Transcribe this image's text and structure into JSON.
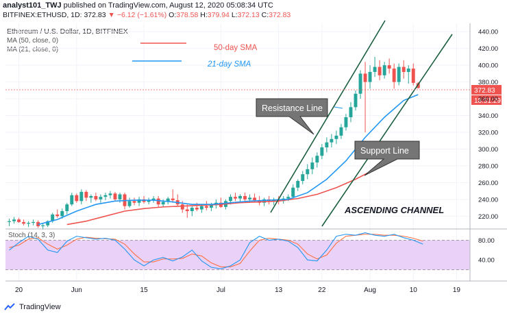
{
  "header": {
    "author": "analyst101_TWJ",
    "published_text": "published on TradingView.com, August 12, 2020 05:08:34 UTC",
    "symbol": "BITFINEX:ETHUSD, 1D",
    "price": "372.83",
    "change": "−6.12 (−1.61%)",
    "o": "378.58",
    "h": "379.94",
    "l": "372.13",
    "c": "372.83",
    "o_label": "O:",
    "h_label": "H:",
    "l_label": "L:",
    "c_label": "C:"
  },
  "legend": {
    "title": "Ethereum / U.S. Dollar, 1D, BITFINEX",
    "ma50": "MA (50, close, 0)",
    "ma21": "MA (21, close, 0)"
  },
  "annotations": {
    "sma50": "50-day SMA",
    "sma21": "21-day SMA",
    "resistance": "Resistance Line",
    "support": "Support Line",
    "channel": "ASCENDING CHANNEL",
    "price_tag": "372.83",
    "time_tag": "18:51:29"
  },
  "stoch_label": "Stoch (14, 3, 3)",
  "footer": {
    "brand": "TradingView"
  },
  "colors": {
    "up": "#26a69a",
    "down": "#ef5350",
    "sma50": "#ef5350",
    "sma21": "#2196f3",
    "channel": "#1b5e3f",
    "stoch_k": "#2196f3",
    "stoch_d": "#ff7043",
    "stoch_fill": "#e9d1f7"
  },
  "chart_data": {
    "type": "candlestick",
    "y_ticks": [
      220,
      240,
      260,
      280,
      300,
      320,
      340,
      360,
      380,
      400,
      420,
      440
    ],
    "ylim": [
      208,
      450
    ],
    "x_labels": [
      {
        "label": "20",
        "index": 2
      },
      {
        "label": "Jun",
        "index": 14
      },
      {
        "label": "15",
        "index": 28
      },
      {
        "label": "Jul",
        "index": 44
      },
      {
        "label": "13",
        "index": 56
      },
      {
        "label": "22",
        "index": 65
      },
      {
        "label": "Aug",
        "index": 75
      },
      {
        "label": "10",
        "index": 84
      },
      {
        "label": "19",
        "index": 93
      }
    ],
    "ohlc": [
      [
        213,
        217,
        208,
        214
      ],
      [
        214,
        219,
        211,
        216
      ],
      [
        216,
        218,
        212,
        213
      ],
      [
        213,
        216,
        209,
        211
      ],
      [
        211,
        214,
        207,
        212
      ],
      [
        212,
        216,
        209,
        213
      ],
      [
        213,
        215,
        206,
        208
      ],
      [
        208,
        212,
        204,
        209
      ],
      [
        209,
        215,
        207,
        214
      ],
      [
        214,
        224,
        212,
        222
      ],
      [
        222,
        228,
        218,
        220
      ],
      [
        220,
        229,
        217,
        226
      ],
      [
        226,
        236,
        222,
        234
      ],
      [
        234,
        248,
        232,
        245
      ],
      [
        245,
        247,
        236,
        238
      ],
      [
        238,
        252,
        234,
        249
      ],
      [
        249,
        251,
        238,
        242
      ],
      [
        242,
        246,
        236,
        244
      ],
      [
        244,
        248,
        238,
        240
      ],
      [
        240,
        246,
        236,
        243
      ],
      [
        243,
        248,
        239,
        245
      ],
      [
        245,
        250,
        241,
        247
      ],
      [
        247,
        249,
        238,
        240
      ],
      [
        240,
        248,
        236,
        246
      ],
      [
        246,
        248,
        228,
        232
      ],
      [
        232,
        242,
        230,
        238
      ],
      [
        238,
        242,
        233,
        236
      ],
      [
        236,
        243,
        232,
        240
      ],
      [
        240,
        244,
        235,
        237
      ],
      [
        237,
        242,
        234,
        239
      ],
      [
        239,
        244,
        236,
        241
      ],
      [
        241,
        244,
        230,
        234
      ],
      [
        234,
        240,
        231,
        237
      ],
      [
        237,
        243,
        234,
        241
      ],
      [
        241,
        252,
        236,
        239
      ],
      [
        239,
        246,
        232,
        234
      ],
      [
        234,
        238,
        224,
        228
      ],
      [
        228,
        234,
        218,
        226
      ],
      [
        226,
        232,
        220,
        230
      ],
      [
        230,
        236,
        226,
        228
      ],
      [
        228,
        234,
        224,
        232
      ],
      [
        232,
        238,
        227,
        230
      ],
      [
        230,
        236,
        226,
        233
      ],
      [
        233,
        240,
        229,
        236
      ],
      [
        236,
        242,
        230,
        231
      ],
      [
        231,
        240,
        228,
        238
      ],
      [
        238,
        246,
        234,
        243
      ],
      [
        243,
        248,
        238,
        241
      ],
      [
        241,
        246,
        236,
        244
      ],
      [
        244,
        248,
        238,
        240
      ],
      [
        240,
        246,
        236,
        242
      ],
      [
        242,
        247,
        237,
        239
      ],
      [
        239,
        244,
        233,
        236
      ],
      [
        236,
        242,
        232,
        240
      ],
      [
        240,
        244,
        234,
        238
      ],
      [
        238,
        242,
        233,
        240
      ],
      [
        240,
        244,
        234,
        238
      ],
      [
        238,
        244,
        235,
        241
      ],
      [
        241,
        246,
        238,
        243
      ],
      [
        243,
        258,
        240,
        254
      ],
      [
        254,
        264,
        250,
        262
      ],
      [
        262,
        274,
        258,
        270
      ],
      [
        270,
        282,
        264,
        276
      ],
      [
        276,
        290,
        270,
        284
      ],
      [
        284,
        296,
        278,
        292
      ],
      [
        292,
        306,
        288,
        302
      ],
      [
        302,
        314,
        296,
        308
      ],
      [
        308,
        318,
        302,
        312
      ],
      [
        312,
        322,
        306,
        316
      ],
      [
        316,
        330,
        312,
        326
      ],
      [
        326,
        342,
        322,
        338
      ],
      [
        338,
        356,
        332,
        350
      ],
      [
        350,
        370,
        346,
        366
      ],
      [
        366,
        394,
        360,
        390
      ],
      [
        390,
        404,
        320,
        380
      ],
      [
        380,
        400,
        372,
        392
      ],
      [
        392,
        410,
        386,
        398
      ],
      [
        398,
        406,
        382,
        388
      ],
      [
        388,
        404,
        384,
        400
      ],
      [
        400,
        408,
        390,
        396
      ],
      [
        396,
        402,
        372,
        380
      ],
      [
        380,
        402,
        376,
        398
      ],
      [
        398,
        406,
        384,
        392
      ],
      [
        392,
        400,
        378,
        396
      ],
      [
        396,
        402,
        376,
        379
      ],
      [
        378.58,
        379.94,
        372.13,
        372.83
      ]
    ],
    "sma21": [
      [
        6,
        210
      ],
      [
        10,
        216
      ],
      [
        14,
        226
      ],
      [
        18,
        234
      ],
      [
        22,
        238
      ],
      [
        26,
        239
      ],
      [
        30,
        239
      ],
      [
        34,
        237
      ],
      [
        38,
        234
      ],
      [
        42,
        234
      ],
      [
        46,
        236
      ],
      [
        50,
        238
      ],
      [
        54,
        239
      ],
      [
        58,
        240
      ],
      [
        62,
        248
      ],
      [
        66,
        264
      ],
      [
        70,
        286
      ],
      [
        74,
        314
      ],
      [
        78,
        338
      ],
      [
        82,
        358
      ],
      [
        85,
        365
      ]
    ],
    "sma50": [
      [
        12,
        210
      ],
      [
        16,
        214
      ],
      [
        20,
        220
      ],
      [
        24,
        226
      ],
      [
        28,
        229
      ],
      [
        32,
        231
      ],
      [
        36,
        232
      ],
      [
        40,
        233
      ],
      [
        44,
        234
      ],
      [
        48,
        236
      ],
      [
        52,
        237
      ],
      [
        56,
        238
      ],
      [
        60,
        241
      ],
      [
        64,
        246
      ],
      [
        68,
        254
      ],
      [
        72,
        264
      ],
      [
        76,
        276
      ],
      [
        80,
        288
      ],
      [
        84,
        298
      ],
      [
        85,
        300
      ]
    ],
    "stoch_k": [
      [
        0,
        60
      ],
      [
        2,
        75
      ],
      [
        4,
        88
      ],
      [
        6,
        82
      ],
      [
        8,
        60
      ],
      [
        10,
        55
      ],
      [
        12,
        78
      ],
      [
        14,
        88
      ],
      [
        16,
        85
      ],
      [
        18,
        82
      ],
      [
        20,
        84
      ],
      [
        22,
        80
      ],
      [
        24,
        62
      ],
      [
        26,
        40
      ],
      [
        28,
        28
      ],
      [
        30,
        40
      ],
      [
        32,
        45
      ],
      [
        34,
        38
      ],
      [
        36,
        46
      ],
      [
        38,
        60
      ],
      [
        40,
        38
      ],
      [
        42,
        25
      ],
      [
        44,
        22
      ],
      [
        46,
        28
      ],
      [
        48,
        40
      ],
      [
        50,
        75
      ],
      [
        52,
        88
      ],
      [
        54,
        80
      ],
      [
        56,
        82
      ],
      [
        58,
        78
      ],
      [
        60,
        65
      ],
      [
        62,
        40
      ],
      [
        64,
        38
      ],
      [
        66,
        60
      ],
      [
        68,
        88
      ],
      [
        70,
        92
      ],
      [
        72,
        90
      ],
      [
        74,
        95
      ],
      [
        76,
        90
      ],
      [
        78,
        88
      ],
      [
        80,
        92
      ],
      [
        82,
        85
      ],
      [
        84,
        80
      ],
      [
        86,
        72
      ]
    ],
    "stoch_d": [
      [
        0,
        65
      ],
      [
        2,
        70
      ],
      [
        4,
        82
      ],
      [
        6,
        85
      ],
      [
        8,
        72
      ],
      [
        10,
        62
      ],
      [
        12,
        70
      ],
      [
        14,
        82
      ],
      [
        16,
        86
      ],
      [
        18,
        84
      ],
      [
        20,
        83
      ],
      [
        22,
        82
      ],
      [
        24,
        72
      ],
      [
        26,
        52
      ],
      [
        28,
        36
      ],
      [
        30,
        36
      ],
      [
        32,
        42
      ],
      [
        34,
        42
      ],
      [
        36,
        43
      ],
      [
        38,
        52
      ],
      [
        40,
        48
      ],
      [
        42,
        34
      ],
      [
        44,
        26
      ],
      [
        46,
        26
      ],
      [
        48,
        33
      ],
      [
        50,
        58
      ],
      [
        52,
        80
      ],
      [
        54,
        84
      ],
      [
        56,
        82
      ],
      [
        58,
        80
      ],
      [
        60,
        72
      ],
      [
        62,
        52
      ],
      [
        64,
        42
      ],
      [
        66,
        50
      ],
      [
        68,
        74
      ],
      [
        70,
        88
      ],
      [
        72,
        90
      ],
      [
        74,
        92
      ],
      [
        76,
        92
      ],
      [
        78,
        90
      ],
      [
        80,
        90
      ],
      [
        82,
        88
      ],
      [
        84,
        84
      ],
      [
        86,
        78
      ]
    ],
    "stoch_ticks": [
      40,
      80
    ],
    "stoch_levels": [
      20,
      80
    ]
  }
}
